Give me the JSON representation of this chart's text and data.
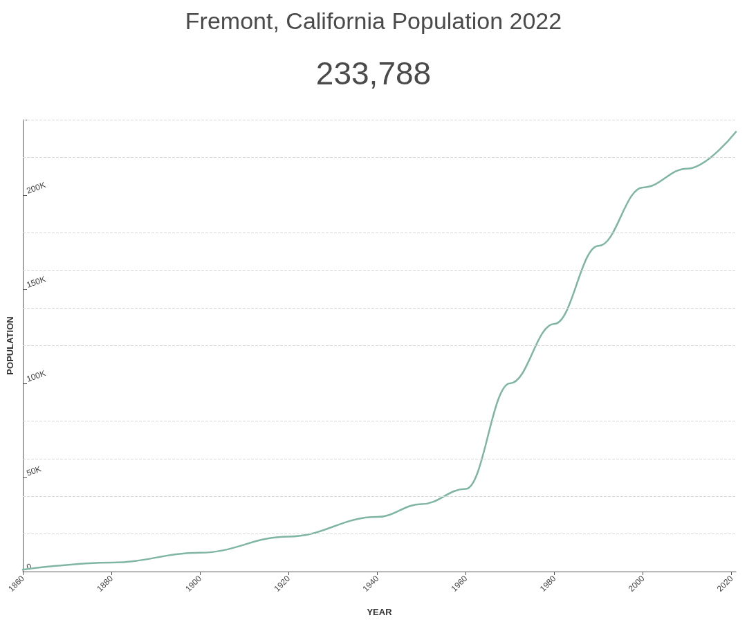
{
  "chart_data": {
    "type": "line",
    "title": "Fremont, California Population 2022",
    "subtitle": "233,788",
    "xlabel": "YEAR",
    "ylabel": "POPULATION",
    "x": [
      1860,
      1880,
      1900,
      1920,
      1940,
      1950,
      1960,
      1970,
      1980,
      1990,
      2000,
      2010,
      2021
    ],
    "series": [
      {
        "color": "#7fb5a3",
        "values": [
          1000,
          4800,
          10000,
          18600,
          29000,
          35800,
          43900,
          100000,
          131600,
          173000,
          204000,
          214000,
          233600
        ]
      }
    ],
    "xlim": [
      1860,
      2021
    ],
    "xticks": [
      1860,
      1880,
      1900,
      1920,
      1940,
      1960,
      1980,
      2000,
      2020
    ],
    "ylim": [
      0,
      240000
    ],
    "yticks": [
      {
        "value": 0,
        "label": "0"
      },
      {
        "value": 20000,
        "label": null
      },
      {
        "value": 40000,
        "label": null
      },
      {
        "value": 50000,
        "label": "50K"
      },
      {
        "value": 60000,
        "label": null
      },
      {
        "value": 80000,
        "label": null
      },
      {
        "value": 100000,
        "label": "100K"
      },
      {
        "value": 120000,
        "label": null
      },
      {
        "value": 140000,
        "label": null
      },
      {
        "value": 150000,
        "label": "150K"
      },
      {
        "value": 160000,
        "label": null
      },
      {
        "value": 180000,
        "label": null
      },
      {
        "value": 200000,
        "label": "200K"
      },
      {
        "value": 220000,
        "label": null
      },
      {
        "value": 240000,
        "label": null
      }
    ],
    "grid": "y",
    "marker": "none",
    "line_style": "solid"
  }
}
